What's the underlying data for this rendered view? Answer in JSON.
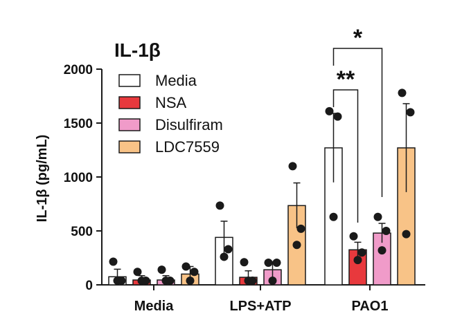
{
  "chart_data": {
    "type": "bar",
    "title": "IL-1β",
    "ylabel": "IL-1β (pg/mL)",
    "xlabel": "",
    "ylim": [
      0,
      2000
    ],
    "yticks": [
      0,
      500,
      1000,
      1500,
      2000
    ],
    "grid": false,
    "legend_position": "top-left",
    "categories": [
      "Media",
      "LPS+ATP",
      "PAO1"
    ],
    "series": [
      {
        "name": "Media",
        "color": "#ffffff",
        "values": [
          75,
          440,
          1270
        ],
        "sem": [
          70,
          150,
          320
        ],
        "points": [
          [
            215,
            5,
            5
          ],
          [
            735,
            330,
            260
          ],
          [
            1610,
            1560,
            630
          ]
        ]
      },
      {
        "name": "NSA",
        "color": "#e8393d",
        "values": [
          45,
          70,
          325
        ],
        "sem": [
          40,
          60,
          70
        ],
        "points": [
          [
            120,
            5,
            5
          ],
          [
            210,
            5,
            5
          ],
          [
            450,
            300,
            230
          ]
        ]
      },
      {
        "name": "Disulfiram",
        "color": "#f09bc9",
        "values": [
          45,
          140,
          480
        ],
        "sem": [
          40,
          75,
          90
        ],
        "points": [
          [
            140,
            5,
            5
          ],
          [
            205,
            205,
            10
          ],
          [
            630,
            500,
            320
          ]
        ]
      },
      {
        "name": "LDC7559",
        "color": "#f8c387",
        "values": [
          100,
          735,
          1270
        ],
        "sem": [
          70,
          210,
          410
        ],
        "points": [
          [
            170,
            120,
            5
          ],
          [
            1100,
            520,
            370
          ],
          [
            1780,
            1600,
            470
          ]
        ]
      }
    ],
    "significance": [
      {
        "label": "**",
        "category": "PAO1",
        "from": "Media",
        "to": "NSA"
      },
      {
        "label": "*",
        "category": "PAO1",
        "from": "Media",
        "to": "Disulfiram"
      }
    ]
  }
}
